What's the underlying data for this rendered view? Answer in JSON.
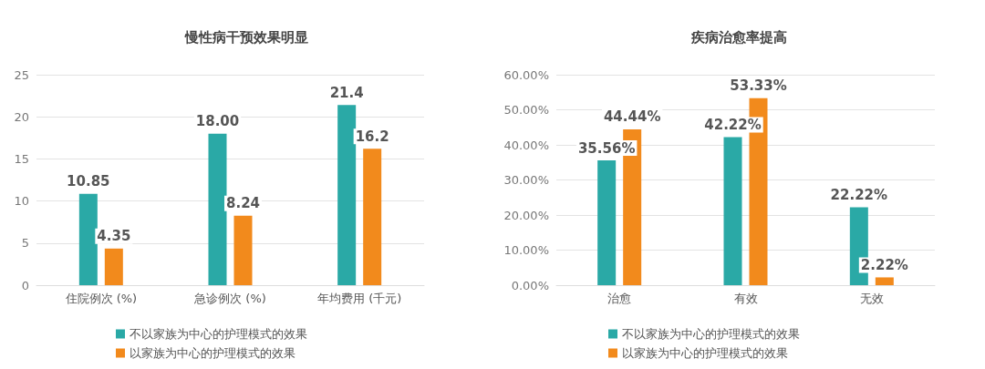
{
  "chart_data": [
    {
      "type": "bar",
      "title": "慢性病干预效果明显",
      "categories": [
        "住院例次 (%)",
        "急诊例次 (%)",
        "年均费用 (千元)"
      ],
      "series": [
        {
          "name": "不以家族为中心的护理模式的效果",
          "color": "#2aa9a6",
          "values": [
            10.85,
            18.0,
            21.4
          ],
          "value_labels": [
            "10.85",
            "18.00",
            "21.4"
          ]
        },
        {
          "name": "以家族为中心的护理模式的效果",
          "color": "#f28a1c",
          "values": [
            4.35,
            8.24,
            16.2
          ],
          "value_labels": [
            "4.35",
            "8.24",
            "16.2"
          ]
        }
      ],
      "ylim": [
        0,
        25
      ],
      "yticks": [
        0,
        5,
        10,
        15,
        20,
        25
      ],
      "grid": "y",
      "legend": "bottom left"
    },
    {
      "type": "bar",
      "title": "疾病治愈率提高",
      "categories": [
        "治愈",
        "有效",
        "无效"
      ],
      "series": [
        {
          "name": "不以家族为中心的护理模式的效果",
          "color": "#2aa9a6",
          "values": [
            35.56,
            42.22,
            22.22
          ],
          "value_labels": [
            "35.56%",
            "42.22%",
            "22.22%"
          ]
        },
        {
          "name": "以家族为中心的护理模式的效果",
          "color": "#f28a1c",
          "values": [
            44.44,
            53.33,
            2.22
          ],
          "value_labels": [
            "44.44%",
            "53.33%",
            "2.22%"
          ]
        }
      ],
      "ylim": [
        0,
        60
      ],
      "yticks": [
        {
          "value": 0,
          "label": "0.00%"
        },
        {
          "value": 10,
          "label": "10.00%"
        },
        {
          "value": 20,
          "label": "20.00%"
        },
        {
          "value": 30,
          "label": "30.00%"
        },
        {
          "value": 40,
          "label": "40.00%"
        },
        {
          "value": 50,
          "label": "50.00%"
        },
        {
          "value": 60,
          "label": "60.00%"
        }
      ],
      "grid": "y",
      "legend": "bottom left"
    }
  ]
}
